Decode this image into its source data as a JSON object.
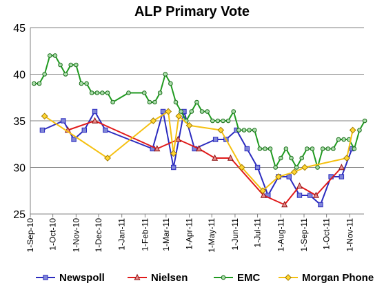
{
  "chart_data": {
    "type": "line",
    "title": "ALP Primary Vote",
    "xlabel": "",
    "ylabel": "",
    "ylim": [
      25,
      45
    ],
    "yticks": [
      25,
      30,
      35,
      40,
      45
    ],
    "xlim": [
      "2010-09-01",
      "2011-11-20"
    ],
    "xticks": [
      {
        "date": "2010-09-01",
        "label": "1-Sep-10"
      },
      {
        "date": "2010-10-01",
        "label": "1-Oct-10"
      },
      {
        "date": "2010-11-01",
        "label": "1-Nov-10"
      },
      {
        "date": "2010-12-01",
        "label": "1-Dec-10"
      },
      {
        "date": "2011-01-01",
        "label": "1-Jan-11"
      },
      {
        "date": "2011-02-01",
        "label": "1-Feb-11"
      },
      {
        "date": "2011-03-01",
        "label": "1-Mar-11"
      },
      {
        "date": "2011-04-01",
        "label": "1-Apr-11"
      },
      {
        "date": "2011-05-01",
        "label": "1-May-11"
      },
      {
        "date": "2011-06-01",
        "label": "1-Jun-11"
      },
      {
        "date": "2011-07-01",
        "label": "1-Jul-11"
      },
      {
        "date": "2011-08-01",
        "label": "1-Aug-11"
      },
      {
        "date": "2011-09-01",
        "label": "1-Sep-11"
      },
      {
        "date": "2011-10-01",
        "label": "1-Oct-11"
      },
      {
        "date": "2011-11-01",
        "label": "1-Nov-11"
      }
    ],
    "grid": "horizontal",
    "legend_position": "bottom",
    "series": [
      {
        "name": "Newspoll",
        "color": "#2b2bbf",
        "marker": "square",
        "points": [
          [
            "2010-09-17",
            34
          ],
          [
            "2010-10-15",
            35
          ],
          [
            "2010-10-29",
            33
          ],
          [
            "2010-11-12",
            34
          ],
          [
            "2010-11-26",
            36
          ],
          [
            "2010-12-10",
            34
          ],
          [
            "2011-02-11",
            32
          ],
          [
            "2011-02-25",
            36
          ],
          [
            "2011-03-11",
            30
          ],
          [
            "2011-03-25",
            36
          ],
          [
            "2011-04-08",
            32
          ],
          [
            "2011-05-06",
            33
          ],
          [
            "2011-05-20",
            33
          ],
          [
            "2011-06-03",
            34
          ],
          [
            "2011-06-17",
            32
          ],
          [
            "2011-07-01",
            30
          ],
          [
            "2011-07-15",
            27
          ],
          [
            "2011-07-29",
            29
          ],
          [
            "2011-08-12",
            29
          ],
          [
            "2011-08-26",
            27
          ],
          [
            "2011-09-09",
            27
          ],
          [
            "2011-09-23",
            26
          ],
          [
            "2011-10-07",
            29
          ],
          [
            "2011-10-21",
            29
          ],
          [
            "2011-11-04",
            32
          ]
        ]
      },
      {
        "name": "Nielsen",
        "color": "#e01a1a",
        "marker": "triangle",
        "points": [
          [
            "2010-10-21",
            34
          ],
          [
            "2010-11-26",
            35
          ],
          [
            "2011-02-17",
            32
          ],
          [
            "2011-03-17",
            33
          ],
          [
            "2011-04-14",
            32
          ],
          [
            "2011-05-05",
            31
          ],
          [
            "2011-05-26",
            31
          ],
          [
            "2011-07-09",
            27
          ],
          [
            "2011-08-06",
            26
          ],
          [
            "2011-08-26",
            28
          ],
          [
            "2011-09-17",
            27
          ],
          [
            "2011-10-21",
            30
          ]
        ]
      },
      {
        "name": "EMC",
        "color": "#1f9a1f",
        "marker": "circle",
        "points": [
          [
            "2010-09-06",
            39
          ],
          [
            "2010-09-13",
            39
          ],
          [
            "2010-09-20",
            40
          ],
          [
            "2010-09-27",
            42
          ],
          [
            "2010-10-04",
            42
          ],
          [
            "2010-10-11",
            41
          ],
          [
            "2010-10-18",
            40
          ],
          [
            "2010-10-25",
            41
          ],
          [
            "2010-11-01",
            41
          ],
          [
            "2010-11-08",
            39
          ],
          [
            "2010-11-15",
            39
          ],
          [
            "2010-11-22",
            38
          ],
          [
            "2010-11-29",
            38
          ],
          [
            "2010-12-06",
            38
          ],
          [
            "2010-12-13",
            38
          ],
          [
            "2010-12-20",
            37
          ],
          [
            "2011-01-10",
            38
          ],
          [
            "2011-01-31",
            38
          ],
          [
            "2011-02-07",
            37
          ],
          [
            "2011-02-14",
            37
          ],
          [
            "2011-02-21",
            38
          ],
          [
            "2011-02-28",
            40
          ],
          [
            "2011-03-07",
            39
          ],
          [
            "2011-03-14",
            37
          ],
          [
            "2011-03-21",
            36
          ],
          [
            "2011-03-28",
            35
          ],
          [
            "2011-04-04",
            36
          ],
          [
            "2011-04-11",
            37
          ],
          [
            "2011-04-18",
            36
          ],
          [
            "2011-04-25",
            36
          ],
          [
            "2011-05-02",
            35
          ],
          [
            "2011-05-09",
            35
          ],
          [
            "2011-05-16",
            35
          ],
          [
            "2011-05-23",
            35
          ],
          [
            "2011-05-30",
            36
          ],
          [
            "2011-06-06",
            34
          ],
          [
            "2011-06-13",
            34
          ],
          [
            "2011-06-20",
            34
          ],
          [
            "2011-06-27",
            34
          ],
          [
            "2011-07-04",
            32
          ],
          [
            "2011-07-11",
            32
          ],
          [
            "2011-07-18",
            32
          ],
          [
            "2011-07-25",
            30
          ],
          [
            "2011-08-01",
            31
          ],
          [
            "2011-08-08",
            32
          ],
          [
            "2011-08-15",
            31
          ],
          [
            "2011-08-22",
            30
          ],
          [
            "2011-08-29",
            31
          ],
          [
            "2011-09-05",
            32
          ],
          [
            "2011-09-12",
            32
          ],
          [
            "2011-09-19",
            30
          ],
          [
            "2011-09-26",
            32
          ],
          [
            "2011-10-03",
            32
          ],
          [
            "2011-10-10",
            32
          ],
          [
            "2011-10-17",
            33
          ],
          [
            "2011-10-24",
            33
          ],
          [
            "2011-10-31",
            33
          ],
          [
            "2011-11-07",
            32
          ],
          [
            "2011-11-14",
            34
          ],
          [
            "2011-11-21",
            35
          ]
        ]
      },
      {
        "name": "Morgan Phone",
        "color": "#f5c010",
        "marker": "diamond",
        "points": [
          [
            "2010-09-20",
            35.5
          ],
          [
            "2010-12-13",
            31
          ],
          [
            "2011-02-12",
            35
          ],
          [
            "2011-03-04",
            36
          ],
          [
            "2011-03-11",
            31.5
          ],
          [
            "2011-03-18",
            35.5
          ],
          [
            "2011-04-01",
            34.5
          ],
          [
            "2011-05-13",
            34
          ],
          [
            "2011-06-10",
            30
          ],
          [
            "2011-07-08",
            27.5
          ],
          [
            "2011-07-29",
            29
          ],
          [
            "2011-08-19",
            29.5
          ],
          [
            "2011-09-02",
            30
          ],
          [
            "2011-10-28",
            31
          ],
          [
            "2011-11-05",
            34
          ]
        ]
      }
    ]
  }
}
